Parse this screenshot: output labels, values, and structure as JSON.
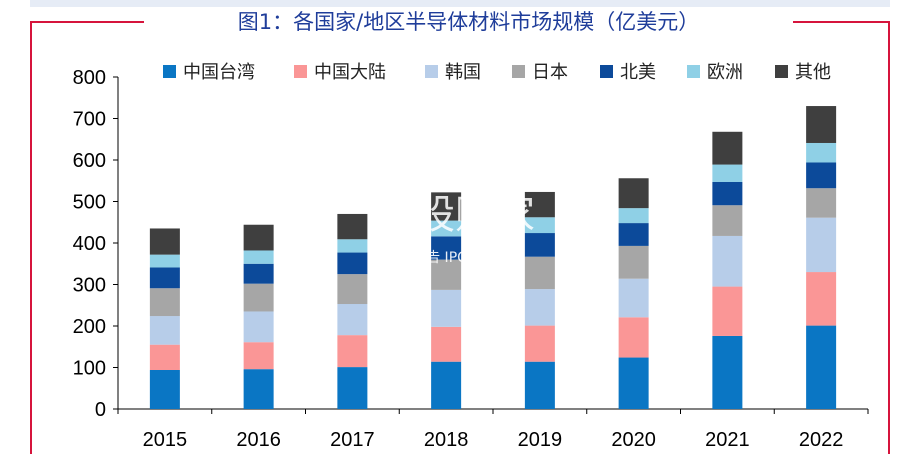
{
  "title": "图1：各国家/地区半导体材料市场规模（亿美元）",
  "watermark": {
    "main": "新股购家",
    "sub": "行业报告 IPOIPO.CN"
  },
  "colors": {
    "frame": "#d6143c",
    "title": "#1f3d9a"
  },
  "chart_data": {
    "type": "bar",
    "stacked": true,
    "categories": [
      "2015",
      "2016",
      "2017",
      "2018",
      "2019",
      "2020",
      "2021",
      "2022"
    ],
    "ylim": [
      0,
      800
    ],
    "yticks": [
      0,
      100,
      200,
      300,
      400,
      500,
      600,
      700,
      800
    ],
    "legend_position": "top",
    "grid": false,
    "series": [
      {
        "name": "中国台湾",
        "color": "#0a76c4",
        "values": [
          94,
          96,
          101,
          114,
          114,
          124,
          176,
          201
        ]
      },
      {
        "name": "中国大陆",
        "color": "#fa9696",
        "values": [
          61,
          65,
          77,
          84,
          87,
          97,
          119,
          129
        ]
      },
      {
        "name": "韩国",
        "color": "#b7cde9",
        "values": [
          69,
          74,
          75,
          89,
          88,
          93,
          122,
          131
        ]
      },
      {
        "name": "日本",
        "color": "#a6a6a6",
        "values": [
          67,
          67,
          72,
          73,
          78,
          79,
          74,
          71
        ]
      },
      {
        "name": "北美",
        "color": "#0c4a9a",
        "values": [
          50,
          48,
          52,
          56,
          57,
          55,
          56,
          62
        ]
      },
      {
        "name": "欧洲",
        "color": "#8fd0e6",
        "values": [
          31,
          32,
          32,
          38,
          38,
          36,
          42,
          47
        ]
      },
      {
        "name": "其他",
        "color": "#3f3f3f",
        "values": [
          63,
          62,
          61,
          68,
          61,
          72,
          79,
          89
        ]
      }
    ]
  }
}
